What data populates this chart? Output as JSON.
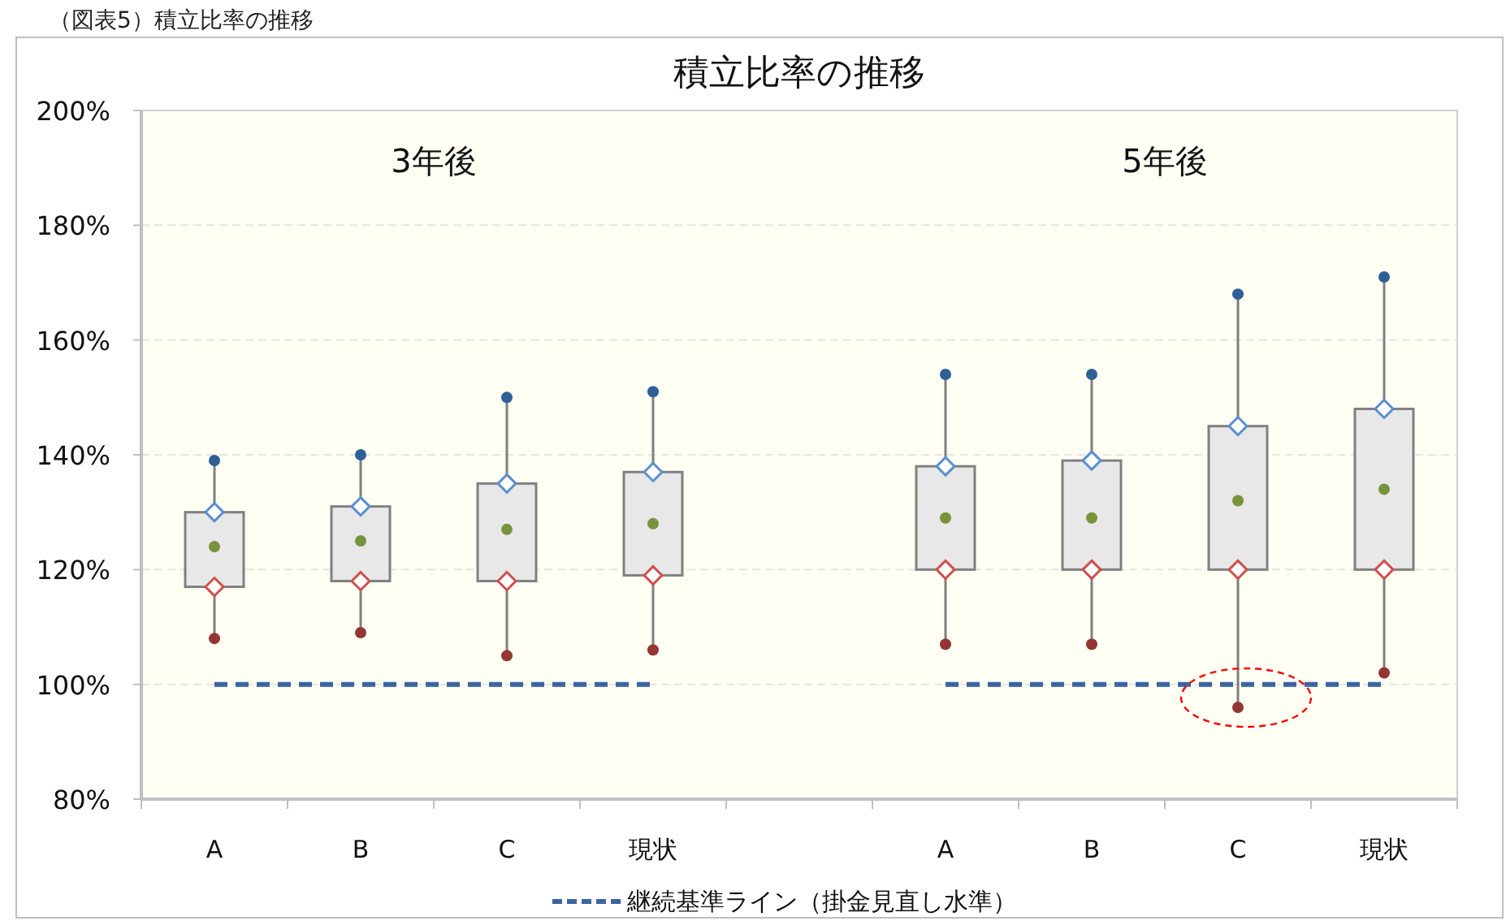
{
  "chart_data": {
    "type": "box",
    "title": "積立比率の推移",
    "categories": [
      "A",
      "B",
      "C",
      "現状",
      null,
      "A",
      "B",
      "C",
      "現状"
    ],
    "boxes": [
      {
        "low": 108,
        "q1": 117,
        "median": 124,
        "q3": 130,
        "high": 139
      },
      {
        "low": 109,
        "q1": 118,
        "median": 125,
        "q3": 131,
        "high": 140
      },
      {
        "low": 105,
        "q1": 118,
        "median": 127,
        "q3": 135,
        "high": 150
      },
      {
        "low": 106,
        "q1": 119,
        "median": 128,
        "q3": 137,
        "high": 151
      },
      null,
      {
        "low": 107,
        "q1": 120,
        "median": 129,
        "q3": 138,
        "high": 154
      },
      {
        "low": 107,
        "q1": 120,
        "median": 129,
        "q3": 139,
        "high": 154
      },
      {
        "low": 96,
        "q1": 120,
        "median": 132,
        "q3": 145,
        "high": 168
      },
      {
        "low": 102,
        "q1": 120,
        "median": 134,
        "q3": 148,
        "high": 171
      }
    ],
    "series": [
      {
        "type": "scatter",
        "marker": "circle",
        "color": "#2e5f96",
        "values": [
          139,
          140,
          150,
          151,
          null,
          154,
          154,
          168,
          171
        ]
      },
      {
        "type": "scatter",
        "marker": "diamond",
        "color": "#5b8fd0",
        "values": [
          130,
          131,
          135,
          137,
          null,
          138,
          139,
          145,
          148
        ]
      },
      {
        "type": "scatter",
        "marker": "diamond",
        "color": "#d0504d",
        "values": [
          117,
          118,
          118,
          119,
          null,
          120,
          120,
          120,
          120
        ]
      },
      {
        "type": "scatter",
        "marker": "circle",
        "color": "#943634",
        "values": [
          108,
          109,
          105,
          106,
          null,
          107,
          107,
          96,
          102
        ]
      },
      {
        "type": "line",
        "name": "継続基準ライン（掛金見直し水準）",
        "color": "#3b64a0",
        "line_style": "dashed",
        "values": [
          100,
          100,
          100,
          100,
          null,
          100,
          100,
          100,
          100
        ]
      }
    ],
    "ylim": [
      80,
      200
    ],
    "yticks": [
      {
        "value": 80,
        "label": "80%"
      },
      {
        "value": 100,
        "label": "100%"
      },
      {
        "value": 120,
        "label": "120%"
      },
      {
        "value": 140,
        "label": "140%"
      },
      {
        "value": 160,
        "label": "160%"
      },
      {
        "value": 180,
        "label": "180%"
      },
      {
        "value": 200,
        "label": "200%"
      }
    ],
    "grid": "y",
    "legend": "bottom",
    "annotations": [
      "（図表5）積立比率の推移",
      "3年後",
      "5年後"
    ]
  }
}
